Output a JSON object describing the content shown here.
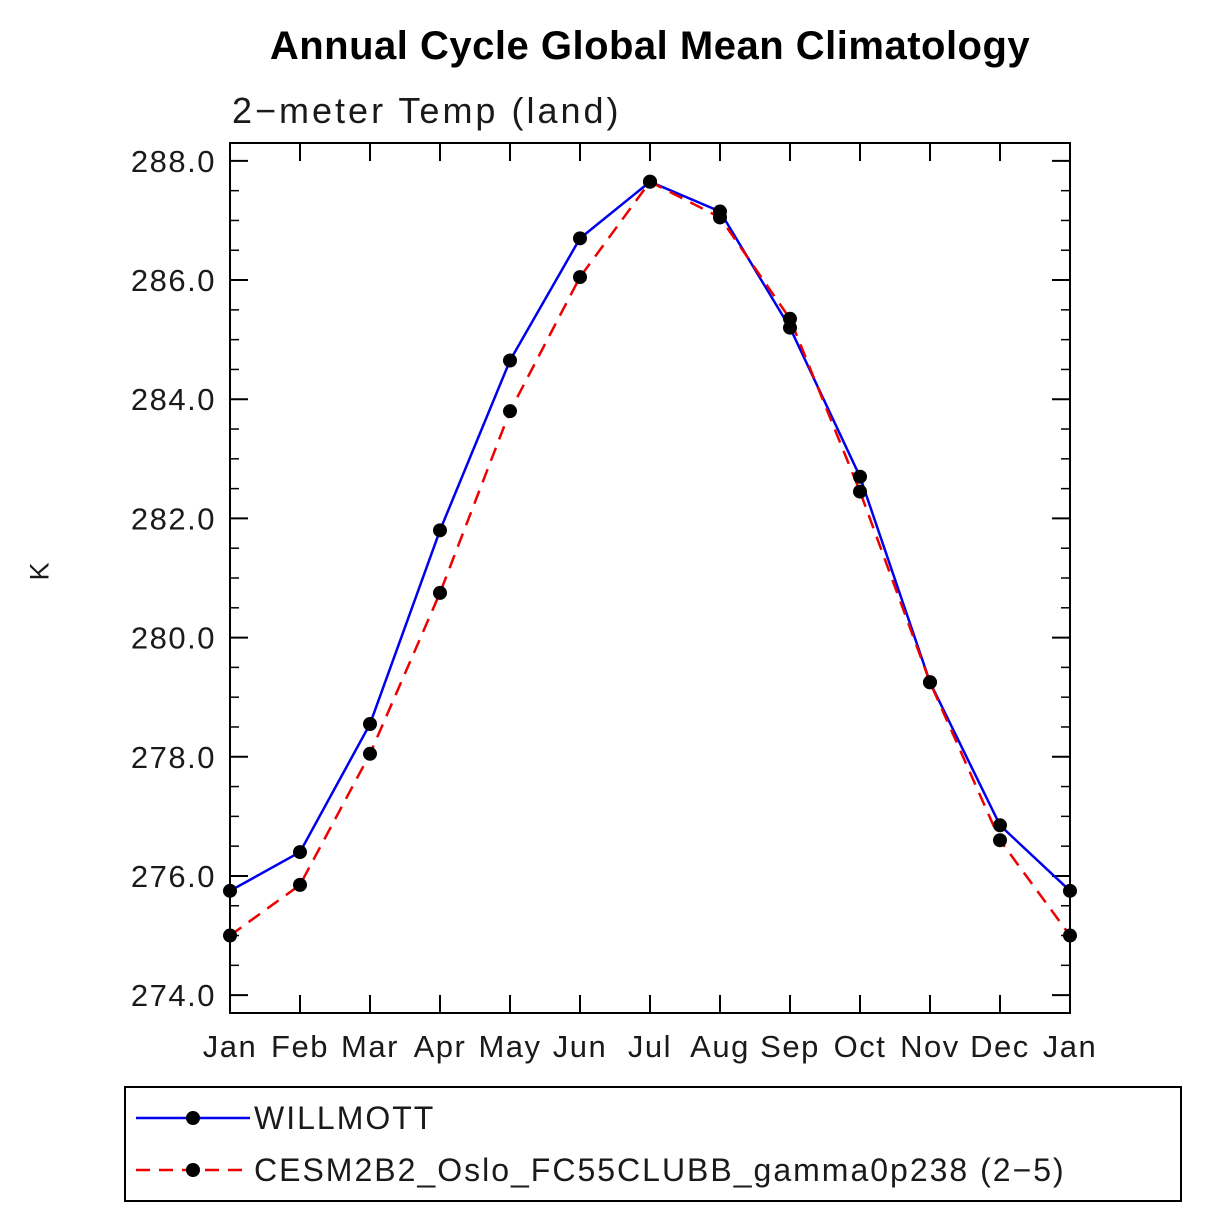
{
  "header": {
    "title": "Annual Cycle Global Mean Climatology",
    "subtitle": "2−meter Temp (land)"
  },
  "chart_data": {
    "type": "line",
    "title": "Annual Cycle Global Mean Climatology",
    "subtitle": "2−meter Temp (land)",
    "xlabel": "",
    "ylabel": "K",
    "categories": [
      "Jan",
      "Feb",
      "Mar",
      "Apr",
      "May",
      "Jun",
      "Jul",
      "Aug",
      "Sep",
      "Oct",
      "Nov",
      "Dec",
      "Jan"
    ],
    "ylim": [
      273.7,
      288.3
    ],
    "yticks": [
      274.0,
      276.0,
      278.0,
      280.0,
      282.0,
      284.0,
      286.0,
      288.0
    ],
    "ytick_labels": [
      "274.0",
      "276.0",
      "278.0",
      "280.0",
      "282.0",
      "284.0",
      "286.0",
      "288.0"
    ],
    "y_minor_step": 0.5,
    "grid": false,
    "legend_position": "bottom",
    "axis_color": "#000000",
    "marker_color": "#000000",
    "marker_shape": "filled-circle",
    "series": [
      {
        "name": "WILLMOTT",
        "color": "#0000ee",
        "style": "solid",
        "values": [
          275.75,
          276.4,
          278.55,
          281.8,
          284.65,
          286.7,
          287.65,
          287.15,
          285.2,
          282.7,
          279.25,
          276.85,
          275.75
        ]
      },
      {
        "name": "CESM2B2_Oslo_FC55CLUBB_gamma0p238 (2−5)",
        "color": "#ee0000",
        "style": "dashed",
        "values": [
          275.0,
          275.85,
          278.05,
          280.75,
          283.8,
          286.05,
          287.65,
          287.05,
          285.35,
          282.45,
          279.25,
          276.6,
          275.0
        ]
      }
    ]
  }
}
